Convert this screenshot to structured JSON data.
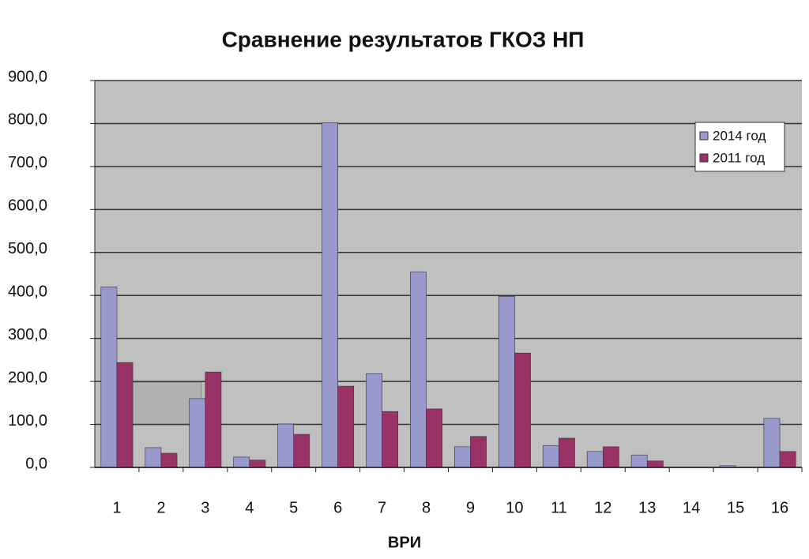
{
  "chart_data": {
    "type": "bar",
    "title": "Сравнение результатов ГКОЗ НП",
    "x_label": "ВРИ",
    "categories": [
      "1",
      "2",
      "3",
      "4",
      "5",
      "6",
      "7",
      "8",
      "9",
      "10",
      "11",
      "12",
      "13",
      "14",
      "15",
      "16"
    ],
    "series": [
      {
        "name": "2014 год",
        "color": "#9999cc",
        "values": [
          420,
          46,
          160,
          24,
          101,
          802,
          218,
          455,
          48,
          398,
          51,
          37,
          29,
          0,
          4,
          114
        ]
      },
      {
        "name": "2011 год",
        "color": "#993366",
        "values": [
          244,
          33,
          222,
          17,
          77,
          189,
          130,
          136,
          72,
          266,
          68,
          48,
          15,
          0,
          0,
          37
        ]
      }
    ],
    "ylim": [
      0,
      900
    ],
    "yticks": [
      {
        "value": 0,
        "label": "0,0"
      },
      {
        "value": 100,
        "label": "100,0"
      },
      {
        "value": 200,
        "label": "200,0"
      },
      {
        "value": 300,
        "label": "300,0"
      },
      {
        "value": 400,
        "label": "400,0"
      },
      {
        "value": 500,
        "label": "500,0"
      },
      {
        "value": 600,
        "label": "600,0"
      },
      {
        "value": 700,
        "label": "700,0"
      },
      {
        "value": 800,
        "label": "800,0"
      },
      {
        "value": 900,
        "label": "900,0"
      }
    ],
    "grid": true,
    "legend": "upper right"
  }
}
